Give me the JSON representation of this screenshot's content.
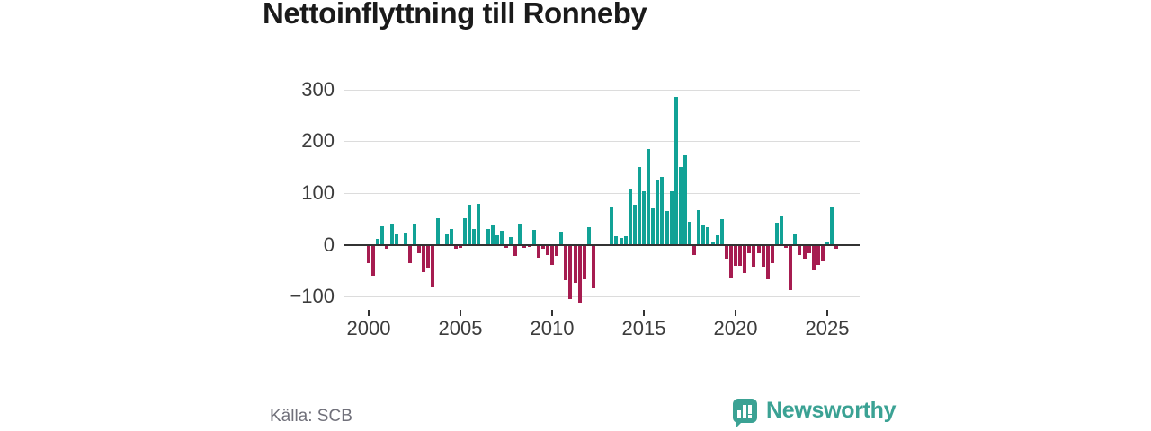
{
  "title": "Nettoinflyttning till Ronneby",
  "source": "Källa: SCB",
  "brand": {
    "name": "Newsworthy",
    "color": "#3BA294"
  },
  "colors": {
    "positive_bar": "#11A296",
    "negative_bar": "#A61C50",
    "axis": "#333333",
    "grid": "#dcdcdc",
    "tick_text": "#3c3c3c",
    "title_text": "#1a1a1a",
    "source_text": "#70707a"
  },
  "chart_data": {
    "type": "bar",
    "title": "Nettoinflyttning till Ronneby",
    "period": "quarterly",
    "x_start_year": 2000,
    "x_start_quarter": 1,
    "values": [
      -35,
      -60,
      12,
      36,
      -7,
      39,
      20,
      0,
      22,
      -36,
      40,
      -16,
      -53,
      -44,
      -82,
      52,
      0,
      20,
      30,
      -8,
      -5,
      51,
      77,
      31,
      80,
      0,
      31,
      38,
      19,
      28,
      -5,
      15,
      -21,
      39,
      -5,
      -4,
      29,
      -24,
      -8,
      -19,
      -38,
      -22,
      25,
      -69,
      -105,
      -74,
      -113,
      -66,
      35,
      -84,
      0,
      0,
      0,
      72,
      17,
      13,
      17,
      109,
      78,
      151,
      103,
      185,
      71,
      126,
      132,
      65,
      103,
      285,
      150,
      173,
      45,
      -19,
      67,
      38,
      34,
      6,
      19,
      50,
      -27,
      -65,
      -40,
      -40,
      -55,
      -17,
      -42,
      -17,
      -43,
      -66,
      -36,
      42,
      56,
      -5,
      -88,
      20,
      -19,
      -26,
      -16,
      -49,
      -38,
      -31,
      7,
      72,
      -7
    ],
    "y_ticks": [
      300,
      200,
      100,
      0,
      -100
    ],
    "y_tick_labels": [
      "300",
      "200",
      "100",
      "0",
      "−100"
    ],
    "x_ticks": [
      2000,
      2005,
      2010,
      2015,
      2020,
      2025
    ],
    "ylim": [
      -130,
      320
    ],
    "grid": true,
    "legend": false
  }
}
